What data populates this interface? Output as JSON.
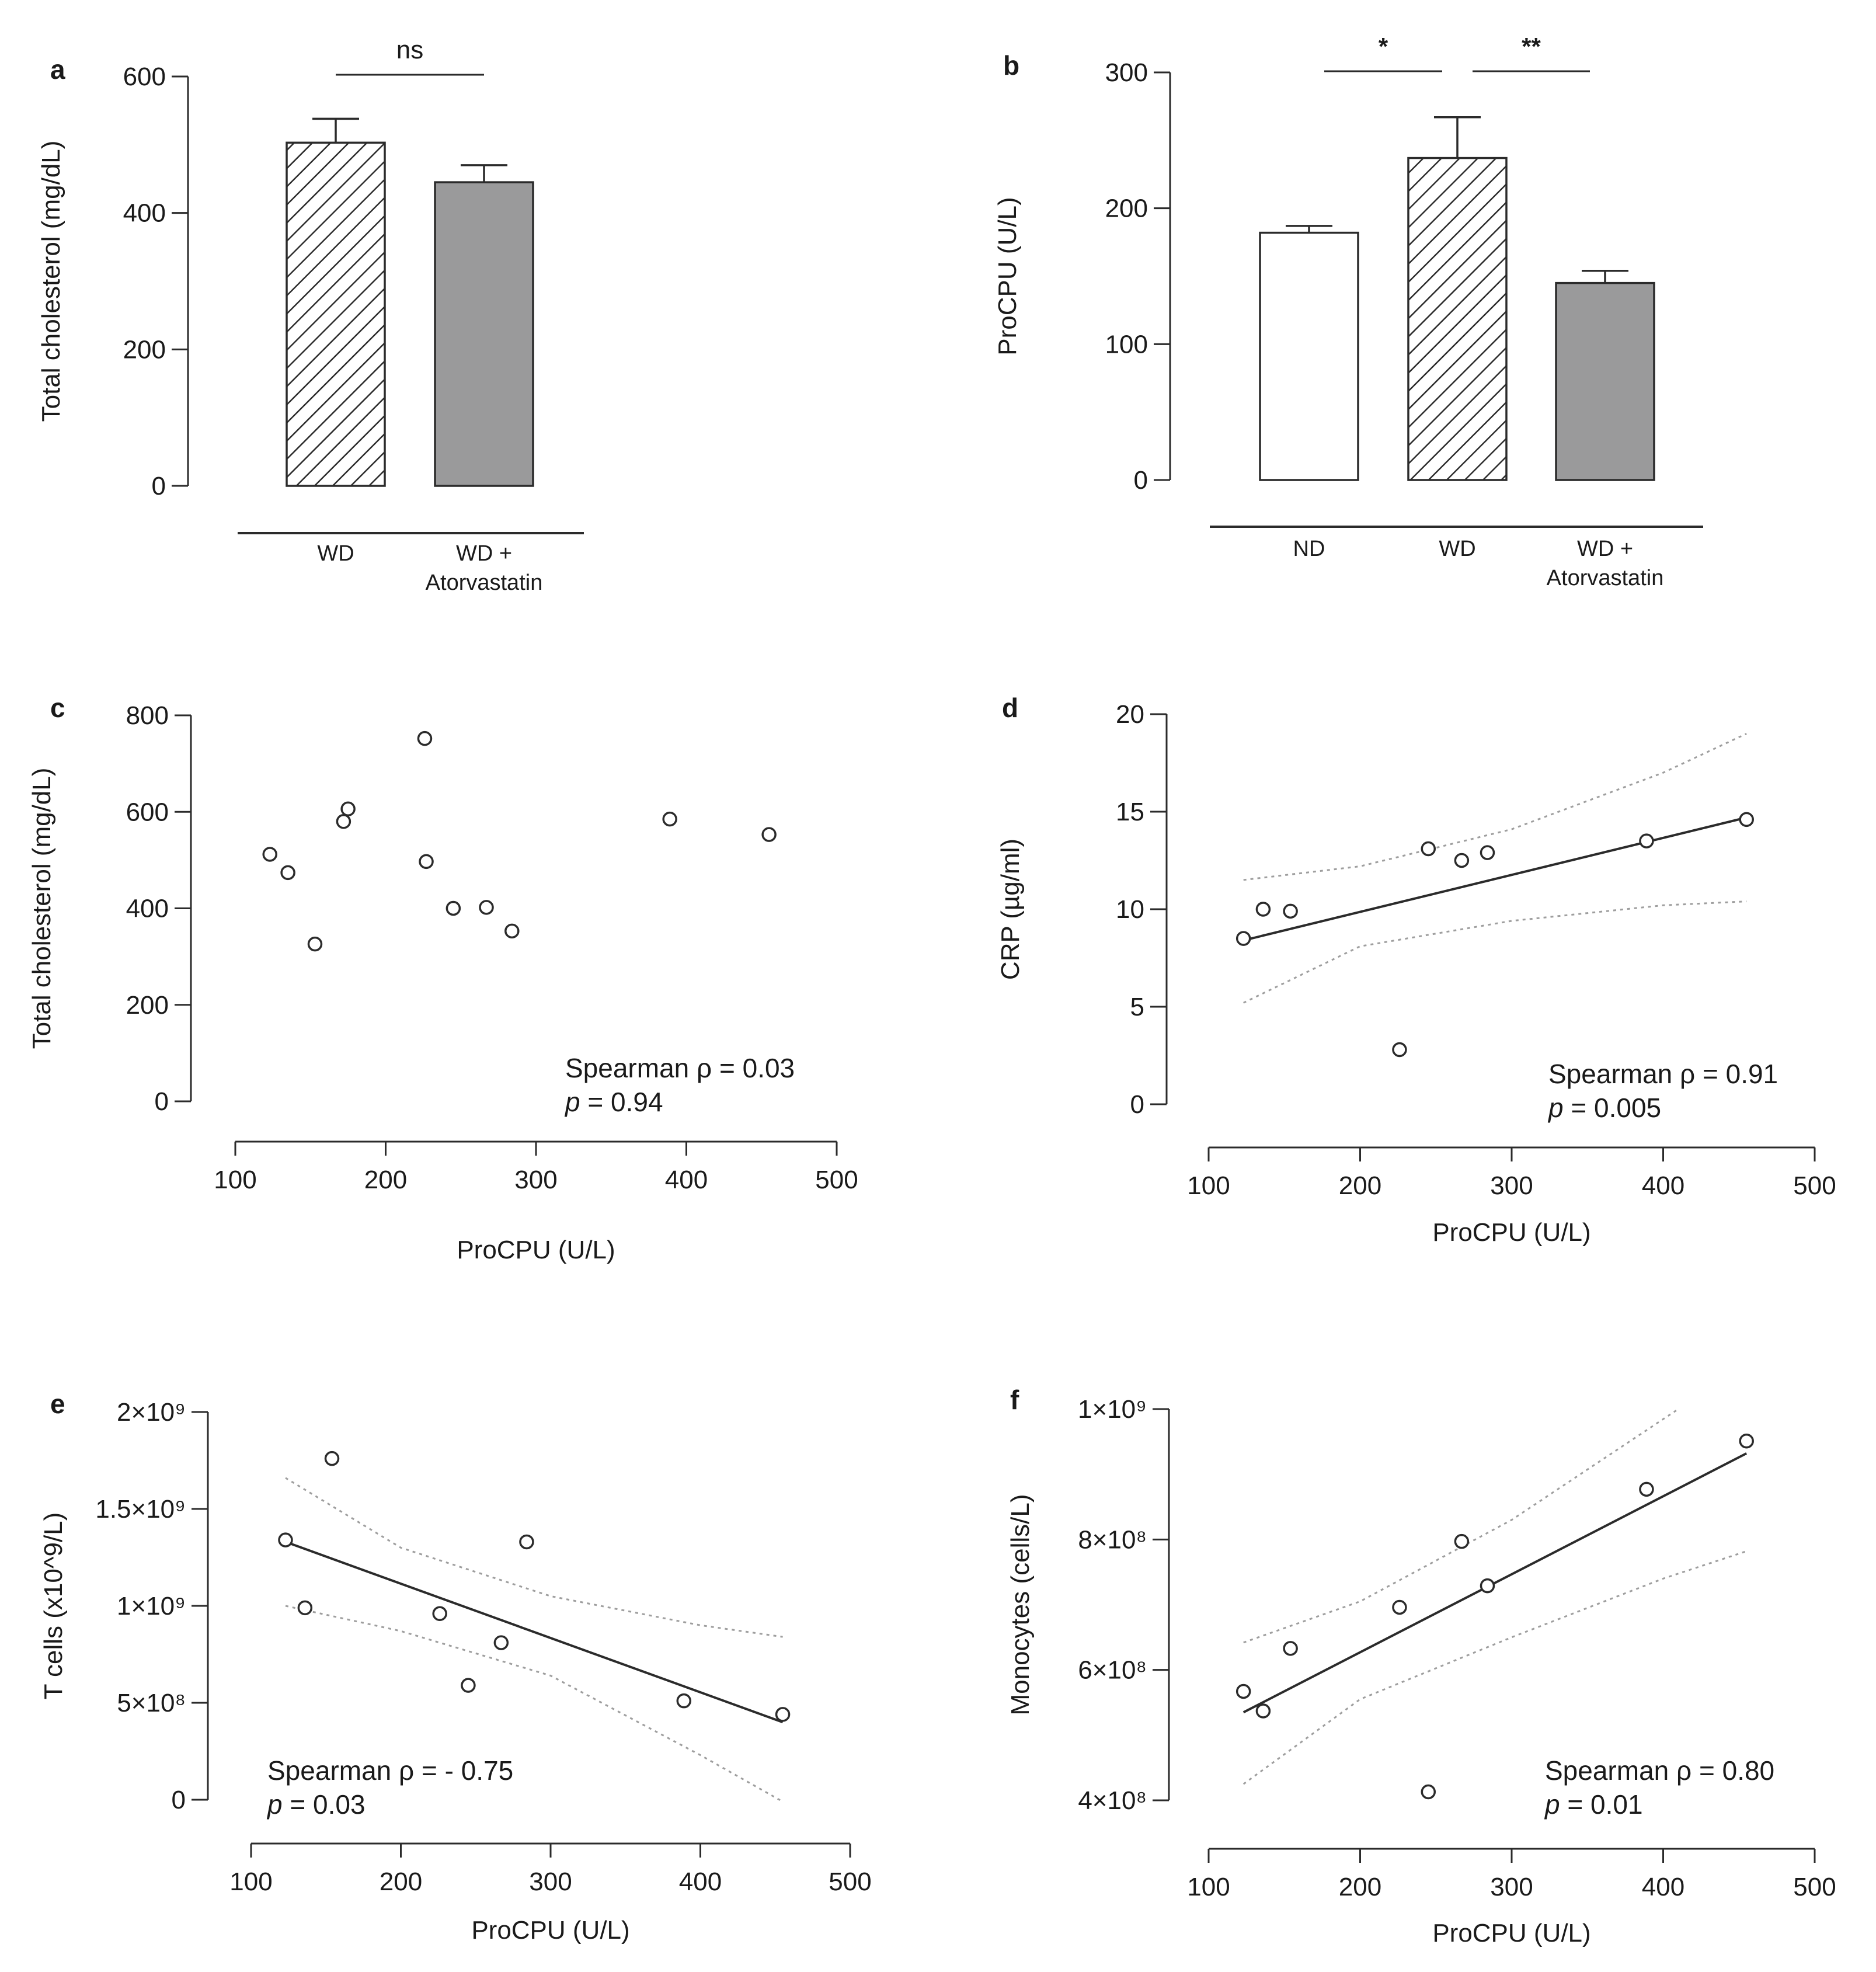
{
  "patterns": {
    "gray": "#9a9a9b",
    "hatch_stroke": "#2a2a2a",
    "line": "#2b2b2b",
    "ci": "#9e9e9e"
  },
  "chart_data": [
    {
      "id": "a",
      "type": "bar",
      "label": "a",
      "categories": [
        "WD",
        "WD + Atorvastatin"
      ],
      "category_lines": [
        [
          "WD"
        ],
        [
          "WD +",
          "Atorvastatin"
        ]
      ],
      "values": [
        503,
        445
      ],
      "errors": [
        35,
        25
      ],
      "fills": [
        "hatch",
        "gray"
      ],
      "ylabel": "Total cholesterol (mg/dL)",
      "ylim": [
        0,
        600
      ],
      "yticks": [
        0,
        200,
        400,
        600
      ],
      "ytick_labels": [
        "0",
        "200",
        "400",
        "600"
      ],
      "significance": [
        {
          "from": 0,
          "to": 1,
          "label": "ns"
        }
      ]
    },
    {
      "id": "b",
      "type": "bar",
      "label": "b",
      "categories": [
        "ND",
        "WD",
        "WD + Atorvastatin"
      ],
      "category_lines": [
        [
          "ND"
        ],
        [
          "WD"
        ],
        [
          "WD +",
          "Atorvastatin"
        ]
      ],
      "values": [
        182,
        237,
        145
      ],
      "errors": [
        5,
        30,
        9
      ],
      "fills": [
        "white",
        "hatch",
        "gray"
      ],
      "ylabel": "ProCPU (U/L)",
      "ylim": [
        0,
        300
      ],
      "yticks": [
        0,
        100,
        200,
        300
      ],
      "ytick_labels": [
        "0",
        "100",
        "200",
        "300"
      ],
      "significance": [
        {
          "from": 0,
          "to": 1,
          "label": "*"
        },
        {
          "from": 1,
          "to": 2,
          "label": "**"
        }
      ]
    },
    {
      "id": "c",
      "type": "scatter",
      "label": "c",
      "x": [
        123,
        135,
        153,
        172,
        175,
        226,
        227,
        245,
        267,
        284,
        389,
        455
      ],
      "y": [
        512,
        474,
        326,
        580,
        606,
        752,
        497,
        400,
        402,
        353,
        585,
        553
      ],
      "xlabel": "ProCPU (U/L)",
      "ylabel": "Total cholesterol (mg/dL)",
      "xlim": [
        100,
        500
      ],
      "ylim": [
        0,
        800
      ],
      "xticks": [
        100,
        200,
        300,
        400,
        500
      ],
      "xtick_labels": [
        "100",
        "200",
        "300",
        "400",
        "500"
      ],
      "yticks": [
        0,
        200,
        400,
        600,
        800
      ],
      "ytick_labels": [
        "0",
        "200",
        "400",
        "600",
        "800"
      ],
      "stat_line1": "Spearman ρ = 0.03",
      "stat_p_label": "p",
      "stat_p_value": " = 0.94",
      "fit": null
    },
    {
      "id": "d",
      "type": "scatter",
      "label": "d",
      "x": [
        123,
        136,
        154,
        226,
        245,
        267,
        284,
        389,
        455
      ],
      "y": [
        8.5,
        10.0,
        9.9,
        2.8,
        13.1,
        12.5,
        12.9,
        13.5,
        14.6
      ],
      "xlabel": "ProCPU (U/L)",
      "ylabel": "CRP (µg/ml)",
      "xlim": [
        100,
        500
      ],
      "ylim": [
        0,
        20
      ],
      "xticks": [
        100,
        200,
        300,
        400,
        500
      ],
      "xtick_labels": [
        "100",
        "200",
        "300",
        "400",
        "500"
      ],
      "yticks": [
        0,
        5,
        10,
        15,
        20
      ],
      "ytick_labels": [
        "0",
        "5",
        "10",
        "15",
        "20"
      ],
      "stat_line1": "Spearman ρ = 0.91",
      "stat_p_label": "p",
      "stat_p_value": " = 0.005",
      "fit": {
        "x": [
          123,
          455
        ],
        "y": [
          8.4,
          14.7
        ],
        "ci_upper": {
          "x": [
            123,
            200,
            300,
            400,
            455
          ],
          "y": [
            11.5,
            12.2,
            14.1,
            17.0,
            19.0
          ]
        },
        "ci_lower": {
          "x": [
            123,
            200,
            300,
            400,
            455
          ],
          "y": [
            5.2,
            8.1,
            9.4,
            10.2,
            10.4
          ]
        }
      }
    },
    {
      "id": "e",
      "type": "scatter",
      "label": "e",
      "x": [
        123,
        136,
        154,
        226,
        245,
        267,
        284,
        389,
        455
      ],
      "y": [
        1340000000.0,
        990000000.0,
        1760000000.0,
        960000000.0,
        590000000.0,
        810000000.0,
        1330000000.0,
        510000000.0,
        440000000.0
      ],
      "xlabel": "ProCPU (U/L)",
      "ylabel": "T cells (x10^9/L)",
      "xlim": [
        100,
        500
      ],
      "ylim": [
        0,
        2000000000
      ],
      "xticks": [
        100,
        200,
        300,
        400,
        500
      ],
      "xtick_labels": [
        "100",
        "200",
        "300",
        "400",
        "500"
      ],
      "yticks": [
        0,
        500000000,
        1000000000,
        1500000000,
        2000000000
      ],
      "ytick_labels": [
        "0",
        "5×10⁸",
        "1×10⁹",
        "1.5×10⁹",
        "2×10⁹"
      ],
      "stat_line1": "Spearman ρ = - 0.75",
      "stat_p_label": "p",
      "stat_p_value": " = 0.03",
      "fit": {
        "x": [
          123,
          455
        ],
        "y": [
          1330000000.0,
          400000000.0
        ],
        "ci_upper": {
          "x": [
            123,
            200,
            300,
            400,
            455
          ],
          "y": [
            1660000000.0,
            1300000000.0,
            1050000000.0,
            900000000.0,
            840000000.0
          ]
        },
        "ci_lower": {
          "x": [
            123,
            200,
            300,
            400,
            455
          ],
          "y": [
            1000000000.0,
            870000000.0,
            640000000.0,
            230000000.0,
            -10000000.0
          ]
        }
      }
    },
    {
      "id": "f",
      "type": "scatter",
      "label": "f",
      "x": [
        123,
        136,
        154,
        226,
        245,
        267,
        284,
        389,
        455
      ],
      "y": [
        567000000.0,
        537000000.0,
        633000000.0,
        696000000.0,
        413000000.0,
        797000000.0,
        729000000.0,
        877000000.0,
        951000000.0
      ],
      "xlabel": "ProCPU (U/L)",
      "ylabel": "Monocytes (cells/L)",
      "xlim": [
        100,
        500
      ],
      "ylim": [
        400000000,
        1000000000
      ],
      "xticks": [
        100,
        200,
        300,
        400,
        500
      ],
      "xtick_labels": [
        "100",
        "200",
        "300",
        "400",
        "500"
      ],
      "yticks": [
        400000000,
        600000000,
        800000000,
        1000000000
      ],
      "ytick_labels": [
        "4×10⁸",
        "6×10⁸",
        "8×10⁸",
        "1×10⁹"
      ],
      "stat_line1": "Spearman ρ = 0.80",
      "stat_p_label": "p",
      "stat_p_value": " = 0.01",
      "fit": {
        "x": [
          123,
          455
        ],
        "y": [
          535000000.0,
          932000000.0
        ],
        "ci_upper": {
          "x": [
            123,
            200,
            300,
            410
          ],
          "y": [
            642000000.0,
            705000000.0,
            830000000.0,
            1000000000.0
          ]
        },
        "ci_lower": {
          "x": [
            123,
            200,
            300,
            400,
            455
          ],
          "y": [
            425000000.0,
            555000000.0,
            650000000.0,
            740000000.0,
            782000000.0
          ]
        }
      }
    }
  ]
}
